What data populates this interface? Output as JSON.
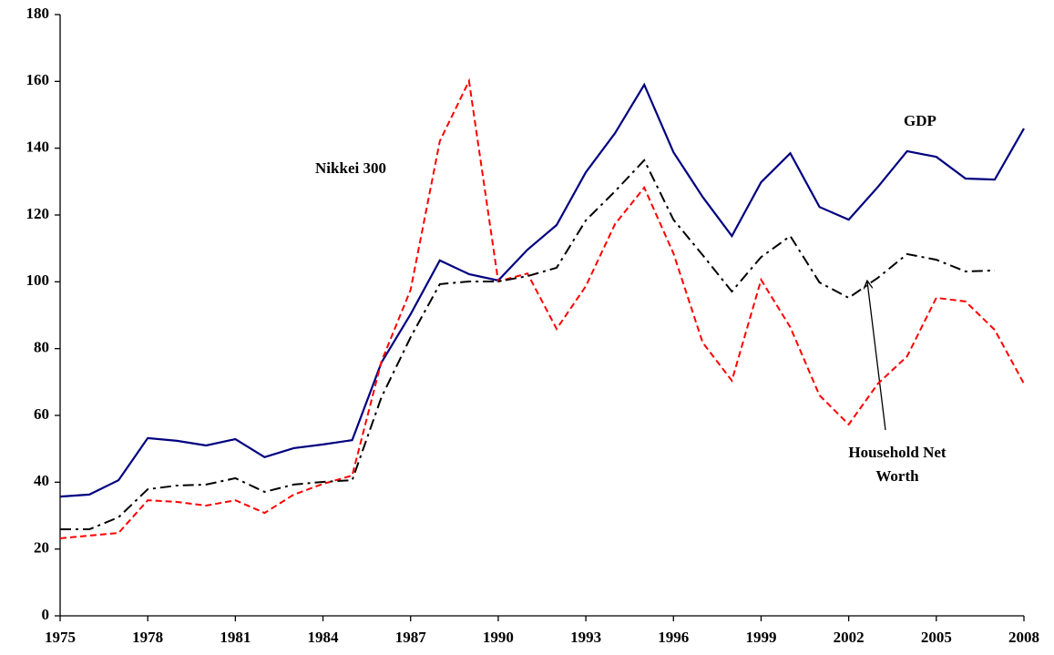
{
  "chart_data": {
    "type": "line",
    "x": [
      1975,
      1976,
      1977,
      1978,
      1979,
      1980,
      1981,
      1982,
      1983,
      1984,
      1985,
      1986,
      1987,
      1988,
      1989,
      1990,
      1991,
      1992,
      1993,
      1994,
      1995,
      1996,
      1997,
      1998,
      1999,
      2000,
      2001,
      2002,
      2003,
      2004,
      2005,
      2006,
      2007,
      2008
    ],
    "series": [
      {
        "name": "GDP",
        "color": "#000080",
        "dash": "solid",
        "values": [
          35.7,
          36.3,
          40.6,
          53.2,
          52.4,
          51.0,
          52.9,
          47.5,
          50.2,
          51.3,
          52.6,
          75.8,
          90.3,
          106.4,
          102.3,
          100.4,
          109.6,
          117,
          132.8,
          144.5,
          159,
          138.8,
          125.4,
          113.7,
          129.8,
          138.5,
          122.4,
          118.6,
          128.4,
          139.1,
          137.4,
          130.9,
          130.6,
          145.9
        ]
      },
      {
        "name": "Nikkei 300",
        "color": "#ff0000",
        "dash": "dashed",
        "values": [
          23.2,
          24,
          24.8,
          34.6,
          34.1,
          33,
          34.6,
          30.8,
          36.3,
          39.5,
          42,
          76.1,
          97.6,
          142.1,
          160.1,
          100.1,
          102.5,
          85.9,
          98.7,
          117.3,
          128.2,
          108.5,
          81.8,
          70.4,
          100.6,
          86.4,
          66,
          57.3,
          69.5,
          77.7,
          95.2,
          94.1,
          85.6,
          69.5
        ]
      },
      {
        "name": "Household Net Worth",
        "color": "#000000",
        "dash": "dashdot",
        "values": [
          25.9,
          25.9,
          29.5,
          37.9,
          39,
          39.3,
          41.2,
          37.1,
          39.3,
          40.1,
          40.6,
          65.4,
          83.4,
          99.3,
          100.1,
          100.1,
          101.7,
          104.2,
          118.4,
          127.1,
          136.4,
          118.6,
          108,
          97.1,
          107.4,
          113.7,
          99.8,
          95.2,
          101.2,
          108.3,
          106.6,
          103.1,
          103.4,
          null
        ]
      }
    ],
    "xlim": [
      1975,
      2008
    ],
    "xticks": [
      1975,
      1978,
      1981,
      1984,
      1987,
      1990,
      1993,
      1996,
      1999,
      2002,
      2005,
      2008
    ],
    "ylim": [
      0,
      180
    ],
    "yticks": [
      0,
      20,
      40,
      60,
      80,
      100,
      120,
      140,
      160,
      180
    ],
    "grid": false
  }
}
